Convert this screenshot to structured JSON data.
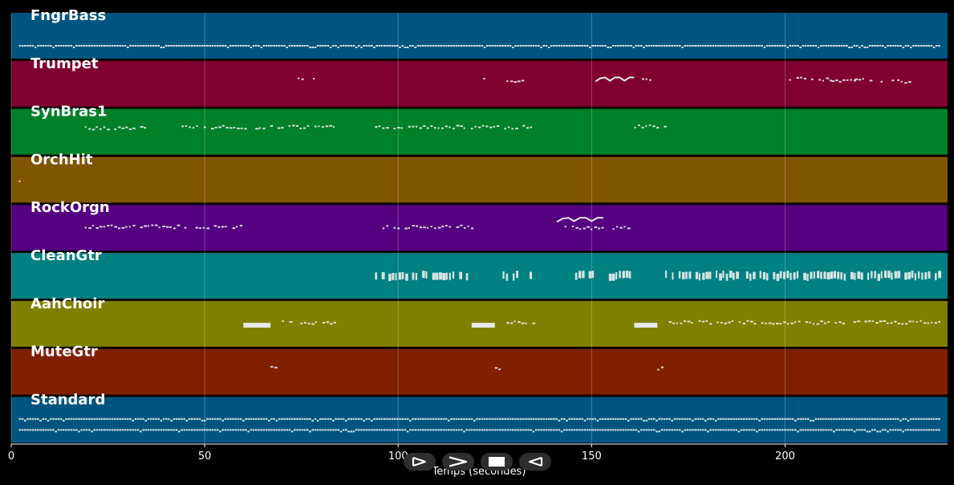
{
  "x_axis": {
    "label": "Temps (secondes)",
    "range": [
      0,
      242
    ],
    "ticks": [
      0,
      50,
      100,
      150,
      200
    ]
  },
  "tracks": [
    {
      "name": "FngrBass",
      "color": "#005580",
      "segments": [
        [
          2,
          240,
          0.72,
          "dense"
        ]
      ]
    },
    {
      "name": "Trumpet",
      "color": "#800030",
      "segments": [
        [
          74,
          75,
          0.4,
          "dots"
        ],
        [
          78,
          79,
          0.4,
          "dots"
        ],
        [
          122,
          123,
          0.4,
          "dots"
        ],
        [
          128,
          132,
          0.45,
          "dots"
        ],
        [
          151,
          161,
          0.38,
          "line"
        ],
        [
          163,
          165,
          0.4,
          "dots"
        ],
        [
          201,
          212,
          0.4,
          "dots"
        ],
        [
          212,
          218,
          0.45,
          "dots"
        ],
        [
          218,
          228,
          0.42,
          "dots"
        ],
        [
          228,
          232,
          0.45,
          "dots"
        ]
      ]
    },
    {
      "name": "SynBras1",
      "color": "#008028",
      "segments": [
        [
          19,
          35,
          0.42,
          "dots"
        ],
        [
          44,
          85,
          0.4,
          "dots"
        ],
        [
          94,
          135,
          0.4,
          "dots"
        ],
        [
          161,
          169,
          0.38,
          "dots"
        ]
      ]
    },
    {
      "name": "OrchHit",
      "color": "#805500",
      "segments": [
        [
          1,
          2,
          0.55,
          "dots"
        ]
      ]
    },
    {
      "name": "RockOrgn",
      "color": "#550080",
      "segments": [
        [
          19,
          60,
          0.48,
          "dots"
        ],
        [
          95,
          119,
          0.48,
          "dots"
        ],
        [
          141,
          153,
          0.3,
          "line"
        ],
        [
          143,
          161,
          0.5,
          "dots"
        ]
      ]
    },
    {
      "name": "CleanGtr",
      "color": "#008080",
      "segments": [
        [
          94,
          118,
          0.5,
          "chords"
        ],
        [
          127,
          134,
          0.5,
          "chords"
        ],
        [
          144,
          160,
          0.5,
          "chords"
        ],
        [
          169,
          240,
          0.5,
          "chords"
        ]
      ]
    },
    {
      "name": "AahChoir",
      "color": "#808000",
      "segments": [
        [
          60,
          67,
          0.53,
          "block"
        ],
        [
          69,
          84,
          0.47,
          "dots"
        ],
        [
          119,
          125,
          0.53,
          "block"
        ],
        [
          128,
          135,
          0.47,
          "dots"
        ],
        [
          161,
          167,
          0.53,
          "block"
        ],
        [
          169,
          240,
          0.47,
          "dots"
        ]
      ]
    },
    {
      "name": "MuteGtr",
      "color": "#802000",
      "segments": [
        [
          67,
          68,
          0.42,
          "dots"
        ],
        [
          125,
          126,
          0.42,
          "dots"
        ],
        [
          167,
          168,
          0.42,
          "dots"
        ]
      ]
    },
    {
      "name": "Standard",
      "color": "#005580",
      "segments": [
        [
          2,
          240,
          0.48,
          "dense"
        ],
        [
          2,
          240,
          0.72,
          "dense"
        ]
      ]
    }
  ],
  "controls": {
    "play_icon": "play-outline-icon",
    "forward_icon": "chevron-right-icon",
    "stop_icon": "stop-icon",
    "back_icon": "rewind-outline-icon"
  }
}
